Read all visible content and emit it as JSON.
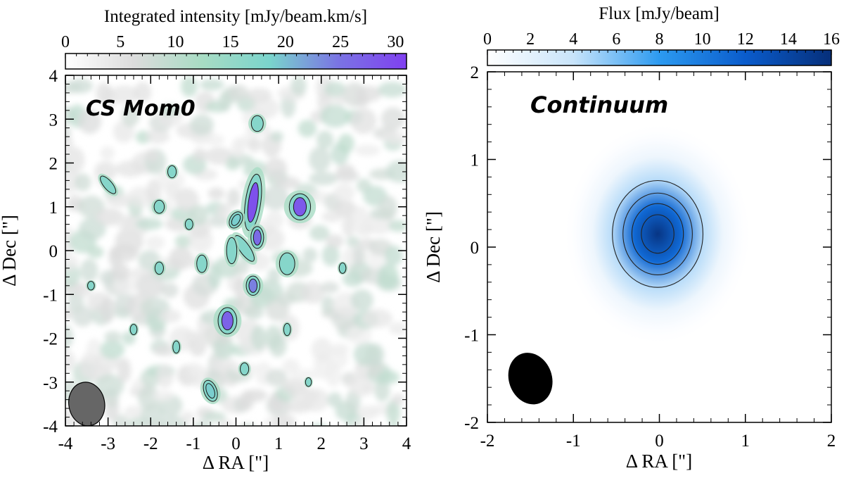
{
  "chart_data": [
    {
      "type": "heatmap",
      "annotation": "CS Mom0",
      "colorbar": {
        "label": "Integrated intensity [mJy/beam.km/s]",
        "ticks": [
          "0",
          "5",
          "10",
          "15",
          "20",
          "25",
          "30"
        ],
        "tick_values": [
          0,
          5,
          10,
          15,
          20,
          25,
          30
        ],
        "range": [
          0,
          31
        ],
        "colors": [
          "#ffffff",
          "#dcdcdc",
          "#a8dcc4",
          "#7ad4cc",
          "#7a74e4",
          "#8040f0"
        ]
      },
      "xlabel": "Δ RA [\"]",
      "ylabel": "Δ Dec [\"]",
      "xlim": [
        -4,
        4
      ],
      "ylim": [
        -4,
        4
      ],
      "xticks": [
        "-4",
        "-3",
        "-2",
        "-1",
        "0",
        "1",
        "2",
        "3",
        "4"
      ],
      "xtick_values": [
        -4,
        -3,
        -2,
        -1,
        0,
        1,
        2,
        3,
        4
      ],
      "yticks": [
        "-4",
        "-3",
        "-2",
        "-1",
        "0",
        "1",
        "2",
        "3",
        "4"
      ],
      "ytick_values": [
        -4,
        -3,
        -2,
        -1,
        0,
        1,
        2,
        3,
        4
      ],
      "beam": {
        "x": -3.5,
        "y": -3.5,
        "major": 0.5,
        "minor": 0.42,
        "pa_deg": 10,
        "color": "#666666"
      },
      "emission_blobs": [
        {
          "x": 0.4,
          "y": 1.1,
          "major": 0.65,
          "minor": 0.18,
          "pa_deg": -8,
          "peak": 29
        },
        {
          "x": 0.5,
          "y": 0.3,
          "major": 0.25,
          "minor": 0.15,
          "pa_deg": 0,
          "peak": 26
        },
        {
          "x": 0.2,
          "y": 0.05,
          "major": 0.35,
          "minor": 0.12,
          "pa_deg": 35,
          "peak": 17
        },
        {
          "x": -0.1,
          "y": 0.0,
          "major": 0.3,
          "minor": 0.12,
          "pa_deg": 0,
          "peak": 16
        },
        {
          "x": 1.5,
          "y": 1.0,
          "major": 0.3,
          "minor": 0.25,
          "pa_deg": 0,
          "peak": 28
        },
        {
          "x": -0.2,
          "y": -1.6,
          "major": 0.3,
          "minor": 0.22,
          "pa_deg": 0,
          "peak": 27
        },
        {
          "x": 0.4,
          "y": -0.8,
          "major": 0.22,
          "minor": 0.16,
          "pa_deg": 0,
          "peak": 24
        },
        {
          "x": 0.0,
          "y": 0.7,
          "major": 0.2,
          "minor": 0.14,
          "pa_deg": -30,
          "peak": 19
        },
        {
          "x": 0.5,
          "y": 2.9,
          "major": 0.18,
          "minor": 0.14,
          "pa_deg": 0,
          "peak": 16
        },
        {
          "x": 1.2,
          "y": -0.3,
          "major": 0.25,
          "minor": 0.18,
          "pa_deg": 0,
          "peak": 16
        },
        {
          "x": -0.8,
          "y": -0.3,
          "major": 0.2,
          "minor": 0.12,
          "pa_deg": 0,
          "peak": 15
        },
        {
          "x": -1.8,
          "y": 1.0,
          "major": 0.15,
          "minor": 0.12,
          "pa_deg": 0,
          "peak": 14
        },
        {
          "x": -0.6,
          "y": -3.2,
          "major": 0.25,
          "minor": 0.15,
          "pa_deg": 20,
          "peak": 19
        },
        {
          "x": 0.2,
          "y": -2.7,
          "major": 0.14,
          "minor": 0.1,
          "pa_deg": 0,
          "peak": 14
        },
        {
          "x": -1.8,
          "y": -0.4,
          "major": 0.14,
          "minor": 0.1,
          "pa_deg": 0,
          "peak": 13
        },
        {
          "x": -1.4,
          "y": -2.2,
          "major": 0.14,
          "minor": 0.08,
          "pa_deg": 0,
          "peak": 13
        },
        {
          "x": 1.2,
          "y": -1.8,
          "major": 0.14,
          "minor": 0.08,
          "pa_deg": 0,
          "peak": 13
        },
        {
          "x": -1.1,
          "y": 0.6,
          "major": 0.12,
          "minor": 0.09,
          "pa_deg": 0,
          "peak": 13
        },
        {
          "x": -1.5,
          "y": 1.8,
          "major": 0.14,
          "minor": 0.1,
          "pa_deg": 0,
          "peak": 12
        },
        {
          "x": -3.0,
          "y": 1.5,
          "major": 0.25,
          "minor": 0.1,
          "pa_deg": 40,
          "peak": 13
        },
        {
          "x": -2.4,
          "y": -1.8,
          "major": 0.12,
          "minor": 0.08,
          "pa_deg": 0,
          "peak": 12
        },
        {
          "x": 2.5,
          "y": -0.4,
          "major": 0.12,
          "minor": 0.08,
          "pa_deg": 0,
          "peak": 12
        },
        {
          "x": 1.7,
          "y": -3.0,
          "major": 0.1,
          "minor": 0.07,
          "pa_deg": 0,
          "peak": 12
        },
        {
          "x": -3.4,
          "y": -0.8,
          "major": 0.1,
          "minor": 0.08,
          "pa_deg": 0,
          "peak": 12
        }
      ],
      "background_noise_level": 7
    },
    {
      "type": "heatmap",
      "annotation": "Continuum",
      "colorbar": {
        "label": "Flux [mJy/beam]",
        "ticks": [
          "0",
          "2",
          "4",
          "6",
          "8",
          "10",
          "12",
          "14",
          "16"
        ],
        "tick_values": [
          0,
          2,
          4,
          6,
          8,
          10,
          12,
          14,
          16
        ],
        "range": [
          0,
          16
        ],
        "colors": [
          "#ffffff",
          "#c8e4fa",
          "#2c9af0",
          "#0a5ccc",
          "#062f7a"
        ]
      },
      "xlabel": "Δ RA [\"]",
      "ylabel": "Δ Dec [\"]",
      "xlim": [
        -2,
        2
      ],
      "ylim": [
        -2,
        2
      ],
      "xticks": [
        "-2",
        "-1",
        "0",
        "1",
        "2"
      ],
      "xtick_values": [
        -2,
        -1,
        0,
        1,
        2
      ],
      "yticks": [
        "-2",
        "-1",
        "0",
        "1",
        "2"
      ],
      "ytick_values": [
        -2,
        -1,
        0,
        1,
        2
      ],
      "source": {
        "x": -0.02,
        "y": 0.15,
        "peak": 15.5,
        "sigma_x": 0.32,
        "sigma_y": 0.37
      },
      "contour_levels": [
        4,
        7,
        10,
        13
      ],
      "beam": {
        "x": -1.5,
        "y": -1.5,
        "major": 0.3,
        "minor": 0.25,
        "pa_deg": 20,
        "color": "#000000"
      }
    }
  ]
}
